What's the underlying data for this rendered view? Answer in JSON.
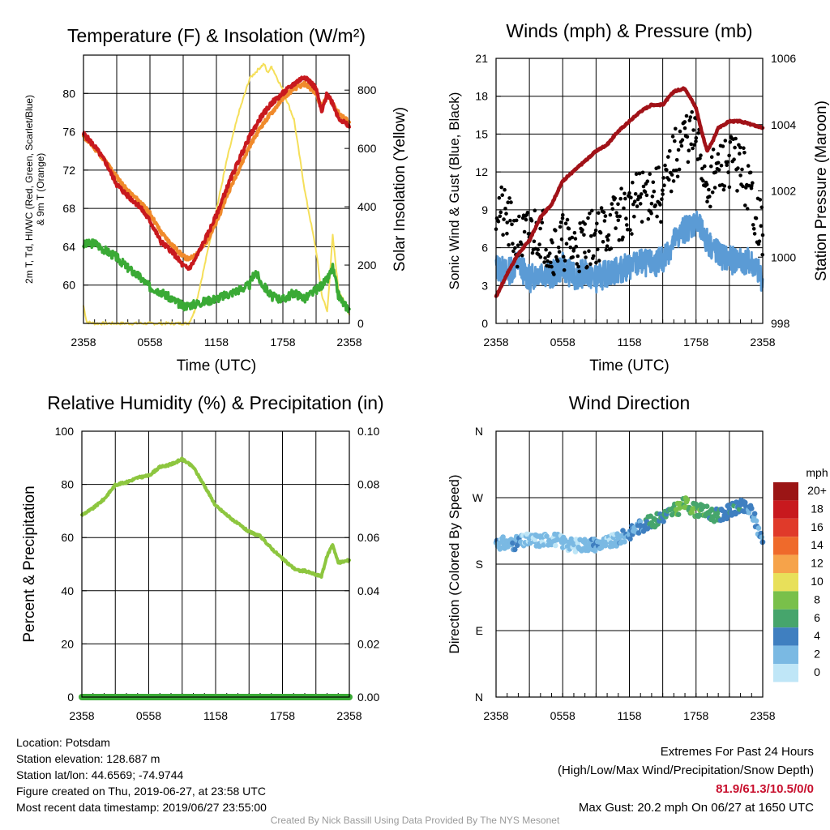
{
  "colors": {
    "temperature": "#c8191e",
    "dewpoint": "#3aaa35",
    "heat_index": "#d01c1c",
    "temp_9m": "#f08a2b",
    "solar": "#f5df5a",
    "wind_speed": "#5b9bd5",
    "gust": "#000000",
    "pressure": "#a11218",
    "rh": "#8dc63f",
    "precip": "#3aaa35"
  },
  "chart_data": [
    {
      "id": "temp",
      "type": "line",
      "title": "Temperature (F) & Insolation (W/m²)",
      "xlabel": "Time (UTC)",
      "ylabel": "2m T, Td, HI/WC (Red, Green, Scarlet/Blue) & 9m T (Orange)",
      "ylabel_right": "Solar Insolation (Yellow)",
      "x_ticks": [
        "2358",
        "0558",
        "1158",
        "1758",
        "2358"
      ],
      "ylim": [
        56,
        84
      ],
      "y_ticks": [
        60,
        64,
        68,
        72,
        76,
        80
      ],
      "ylim_right": [
        0,
        920
      ],
      "y_ticks_right": [
        0,
        200,
        400,
        600,
        800
      ],
      "series": [
        {
          "key": "temperature",
          "axis": "left",
          "x": [
            0,
            1,
            2,
            3,
            4,
            5,
            6,
            7,
            8,
            9,
            9.5,
            10,
            11,
            12,
            13,
            14,
            15,
            16,
            17,
            18,
            19,
            20,
            21,
            21.5,
            22,
            22.5,
            23,
            24
          ],
          "values": [
            75.8,
            74.5,
            72.8,
            70.5,
            69.3,
            68.3,
            66.7,
            64.5,
            63.5,
            62.0,
            61.7,
            62.5,
            64.8,
            67.3,
            70.3,
            73.0,
            75.5,
            77.5,
            79.0,
            80.0,
            81.0,
            81.8,
            80.5,
            78.0,
            80.0,
            79.0,
            77.5,
            76.5
          ]
        },
        {
          "key": "temp_9m",
          "axis": "left",
          "x": [
            0,
            1,
            2,
            3,
            4,
            5,
            6,
            7,
            8,
            9,
            9.5,
            10,
            11,
            12,
            13,
            14,
            15,
            16,
            17,
            18,
            19,
            20,
            21,
            21.5,
            22,
            22.5,
            23,
            24
          ],
          "values": [
            75.5,
            74.3,
            72.9,
            71.3,
            69.8,
            68.8,
            67.5,
            65.5,
            64.2,
            63.0,
            62.7,
            63.0,
            64.3,
            66.5,
            69.5,
            72.0,
            74.5,
            76.5,
            78.0,
            79.5,
            80.5,
            81.0,
            80.0,
            78.5,
            79.8,
            79.0,
            78.0,
            77.0
          ]
        },
        {
          "key": "dewpoint",
          "axis": "left",
          "x": [
            0,
            1,
            2,
            3,
            4,
            5,
            6,
            7,
            8,
            9,
            10,
            11,
            12,
            13,
            14,
            15,
            15.5,
            16,
            17,
            18,
            19,
            20,
            21,
            22,
            22.5,
            23,
            23.5,
            24
          ],
          "values": [
            64.2,
            64.4,
            63.6,
            62.9,
            61.8,
            60.9,
            59.8,
            59.3,
            58.5,
            57.8,
            58.0,
            58.3,
            58.6,
            59.0,
            59.5,
            60.0,
            61.5,
            60.3,
            58.8,
            58.5,
            59.2,
            58.6,
            59.5,
            60.5,
            61.8,
            59.0,
            58.0,
            57.5
          ]
        },
        {
          "key": "solar",
          "axis": "right",
          "x": [
            0,
            0.3,
            1,
            3,
            5,
            6,
            7,
            8,
            9,
            9.5,
            10,
            11,
            12,
            13,
            14,
            15,
            15.5,
            16,
            16.3,
            16.6,
            17,
            18,
            19,
            20,
            21,
            21.5,
            22,
            22.5,
            23,
            24
          ],
          "values": [
            60,
            5,
            0,
            0,
            0,
            0,
            0,
            0,
            0,
            0,
            40,
            210,
            390,
            570,
            720,
            840,
            860,
            880,
            890,
            860,
            880,
            800,
            700,
            450,
            250,
            100,
            40,
            300,
            120,
            30
          ]
        }
      ]
    },
    {
      "id": "wind",
      "type": "line",
      "title": "Winds (mph) & Pressure (mb)",
      "xlabel": "Time (UTC)",
      "ylabel": "Sonic Wind & Gust (Blue, Black)",
      "ylabel_right": "Station Pressure (Maroon)",
      "x_ticks": [
        "2358",
        "0558",
        "1158",
        "1758",
        "2358"
      ],
      "ylim": [
        0,
        21
      ],
      "y_ticks": [
        0,
        3,
        6,
        9,
        12,
        15,
        18,
        21
      ],
      "ylim_right": [
        998,
        1006
      ],
      "y_ticks_right": [
        998,
        1000,
        1002,
        1004,
        1006
      ],
      "series": [
        {
          "key": "wind_speed",
          "axis": "left",
          "x": [
            0,
            1,
            2,
            3,
            4,
            5,
            6,
            7,
            8,
            9,
            10,
            11,
            12,
            13,
            14,
            15,
            16,
            17,
            18,
            19,
            20,
            21,
            22,
            23,
            24
          ],
          "values": [
            4.5,
            4.0,
            4.8,
            3.5,
            4.2,
            3.8,
            4.5,
            3.7,
            4.0,
            3.5,
            4.0,
            4.2,
            4.5,
            4.8,
            4.7,
            5.0,
            6.5,
            7.5,
            8.0,
            6.5,
            5.5,
            5.0,
            5.0,
            4.8,
            3.5
          ]
        },
        {
          "key": "pressure",
          "axis": "right",
          "x": [
            0,
            1,
            2,
            3,
            4,
            5,
            6,
            7,
            8,
            9,
            10,
            11,
            12,
            13,
            14,
            15,
            16,
            17,
            18,
            18.5,
            19,
            19.5,
            20,
            21,
            22,
            23,
            24
          ],
          "values": [
            998.8,
            999.5,
            1000.1,
            1000.5,
            1001.2,
            1001.6,
            1002.3,
            1002.6,
            1002.9,
            1003.2,
            1003.4,
            1003.8,
            1004.1,
            1004.4,
            1004.6,
            1004.6,
            1005.0,
            1005.1,
            1004.5,
            1003.8,
            1003.2,
            1003.5,
            1003.9,
            1004.1,
            1004.1,
            1004.0,
            1003.9
          ]
        },
        {
          "key": "gust",
          "axis": "left",
          "style": "dots",
          "x": [
            0,
            1,
            2,
            3,
            4,
            5,
            6,
            7,
            8,
            9,
            10,
            11,
            12,
            13,
            14,
            15,
            16,
            17,
            18,
            19,
            20,
            21,
            22,
            23,
            24
          ],
          "values": [
            9.5,
            8.0,
            6.5,
            7.0,
            7.5,
            6.0,
            6.5,
            6.0,
            6.5,
            7.0,
            7.5,
            8.5,
            9.0,
            10.0,
            10.5,
            10.0,
            13.0,
            15.0,
            14.5,
            11.0,
            12.0,
            13.0,
            12.5,
            10.0,
            7.0
          ]
        }
      ]
    },
    {
      "id": "rh",
      "type": "line",
      "title": "Relative Humidity (%) & Precipitation (in)",
      "xlabel": "",
      "ylabel": "Percent & Precipitation",
      "x_ticks": [
        "2358",
        "0558",
        "1158",
        "1758",
        "2358"
      ],
      "ylim": [
        0,
        100
      ],
      "y_ticks": [
        0,
        20,
        40,
        60,
        80,
        100
      ],
      "ylim_right": [
        0,
        0.1
      ],
      "y_ticks_right": [
        "0.00",
        "0.02",
        "0.04",
        "0.06",
        "0.08",
        "0.10"
      ],
      "series": [
        {
          "key": "rh",
          "axis": "left",
          "x": [
            0,
            1,
            2,
            3,
            4,
            5,
            6,
            7,
            8,
            9,
            10,
            11,
            12,
            13,
            14,
            15,
            16,
            17,
            18,
            19,
            19.5,
            20,
            21,
            21.5,
            22,
            22.5,
            23,
            24
          ],
          "values": [
            68.5,
            71.0,
            74.5,
            79.8,
            80.8,
            82.5,
            83.3,
            86.5,
            87.5,
            89.5,
            86.5,
            79.5,
            72.0,
            68.5,
            65.2,
            62.2,
            60.5,
            56.0,
            52.0,
            48.5,
            47.5,
            47.5,
            46.0,
            45.5,
            53.0,
            57.5,
            50.5,
            51.5
          ]
        },
        {
          "key": "precip",
          "axis": "right",
          "x": [
            0,
            24
          ],
          "values": [
            0,
            0
          ]
        }
      ]
    },
    {
      "id": "dir",
      "type": "scatter",
      "title": "Wind Direction",
      "xlabel": "",
      "ylabel": "Direction (Colored By Speed)",
      "x_ticks": [
        "2358",
        "0558",
        "1158",
        "1758",
        "2358"
      ],
      "y_ticks": [
        "N",
        "E",
        "S",
        "W",
        "N"
      ],
      "ylim": [
        0,
        360
      ],
      "colorbar": {
        "title": "mph",
        "labels": [
          "0",
          "2",
          "4",
          "6",
          "8",
          "10",
          "12",
          "14",
          "16",
          "18",
          "20+"
        ],
        "colors": [
          "#bfe6f7",
          "#7ab9e3",
          "#3f7fc0",
          "#46a56c",
          "#79c04a",
          "#e8e05a",
          "#f6a34a",
          "#ef6a2b",
          "#e03a2a",
          "#c8191e",
          "#9b1515"
        ]
      },
      "series": [
        {
          "name": "direction",
          "x": [
            0,
            1,
            2,
            3,
            4,
            5,
            6,
            7,
            8,
            9,
            10,
            11,
            12,
            13,
            14,
            15,
            16,
            17,
            18,
            19,
            20,
            21,
            22,
            23,
            24
          ],
          "values": [
            210,
            207,
            209,
            213,
            212,
            215,
            210,
            205,
            207,
            207,
            209,
            213,
            222,
            232,
            237,
            245,
            252,
            262,
            253,
            250,
            245,
            252,
            258,
            252,
            210
          ],
          "speeds": [
            3,
            3,
            4,
            2,
            3,
            2,
            3,
            2,
            3,
            4,
            2,
            3,
            4,
            4,
            6,
            6,
            7,
            9,
            8,
            7,
            6,
            5,
            5,
            4,
            4
          ]
        }
      ]
    }
  ],
  "info": {
    "location": "Location: Potsdam",
    "elevation": "Station elevation: 128.687 m",
    "latlon": "Station lat/lon: 44.6569; -74.9744",
    "created": "Figure created on Thu, 2019-06-27, at 23:58 UTC",
    "recent": "Most recent data timestamp: 2019/06/27 23:55:00"
  },
  "extremes": {
    "title": "Extremes For Past 24 Hours",
    "subtitle": "(High/Low/Max Wind/Precipitation/Snow Depth)",
    "values": "81.9/61.3/10.5/0/0",
    "max_gust": "Max Gust: 20.2 mph On 06/27 at 1650 UTC"
  },
  "credit": "Created By Nick Bassill Using Data Provided By The NYS Mesonet"
}
